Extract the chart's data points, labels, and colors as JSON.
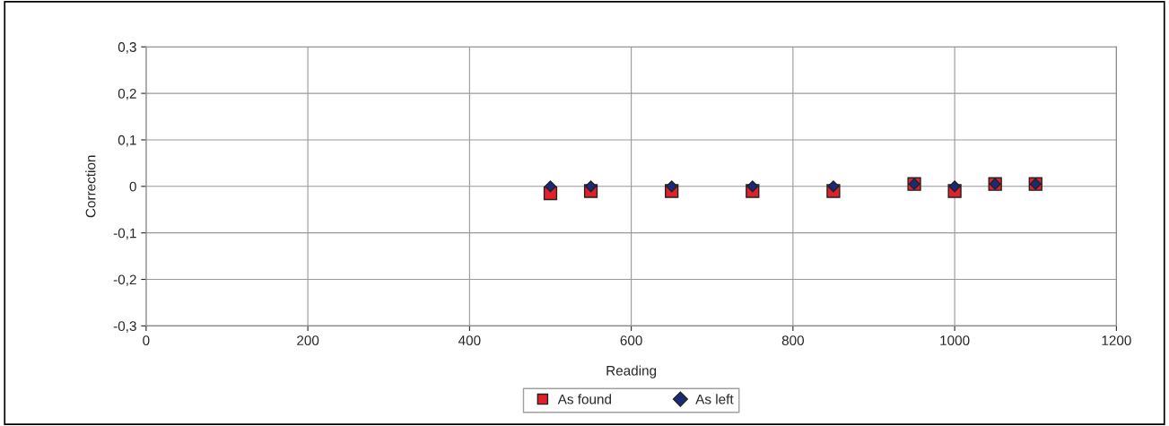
{
  "chart_data": {
    "type": "scatter",
    "xlabel": "Reading",
    "ylabel": "Correction",
    "xlim": [
      0,
      1200
    ],
    "xticks": [
      0,
      200,
      400,
      600,
      800,
      1000,
      1200
    ],
    "ylim": [
      -0.3,
      0.3
    ],
    "yticks": [
      {
        "value": -0.3,
        "label": "-0,3"
      },
      {
        "value": -0.2,
        "label": "-0,2"
      },
      {
        "value": -0.1,
        "label": "-0,1"
      },
      0,
      {
        "value": 0.1,
        "label": "0,1"
      },
      {
        "value": 0.2,
        "label": "0,2"
      },
      {
        "value": 0.3,
        "label": "0,3"
      }
    ],
    "grid": true,
    "legend": "bottom",
    "series": [
      {
        "name": "As found",
        "color": "#e0202a",
        "marker": "square",
        "x": [
          500,
          550,
          650,
          750,
          850,
          950,
          1000,
          1050,
          1100
        ],
        "values": [
          -0.015,
          -0.01,
          -0.01,
          -0.01,
          -0.01,
          0.005,
          -0.01,
          0.005,
          0.005
        ]
      },
      {
        "name": "As left",
        "color": "#1a2a7a",
        "marker": "diamond",
        "x": [
          500,
          550,
          650,
          750,
          850,
          950,
          1000,
          1050,
          1100
        ],
        "values": [
          0,
          0,
          0,
          0,
          0,
          0.005,
          0,
          0.005,
          0.005
        ]
      }
    ]
  }
}
